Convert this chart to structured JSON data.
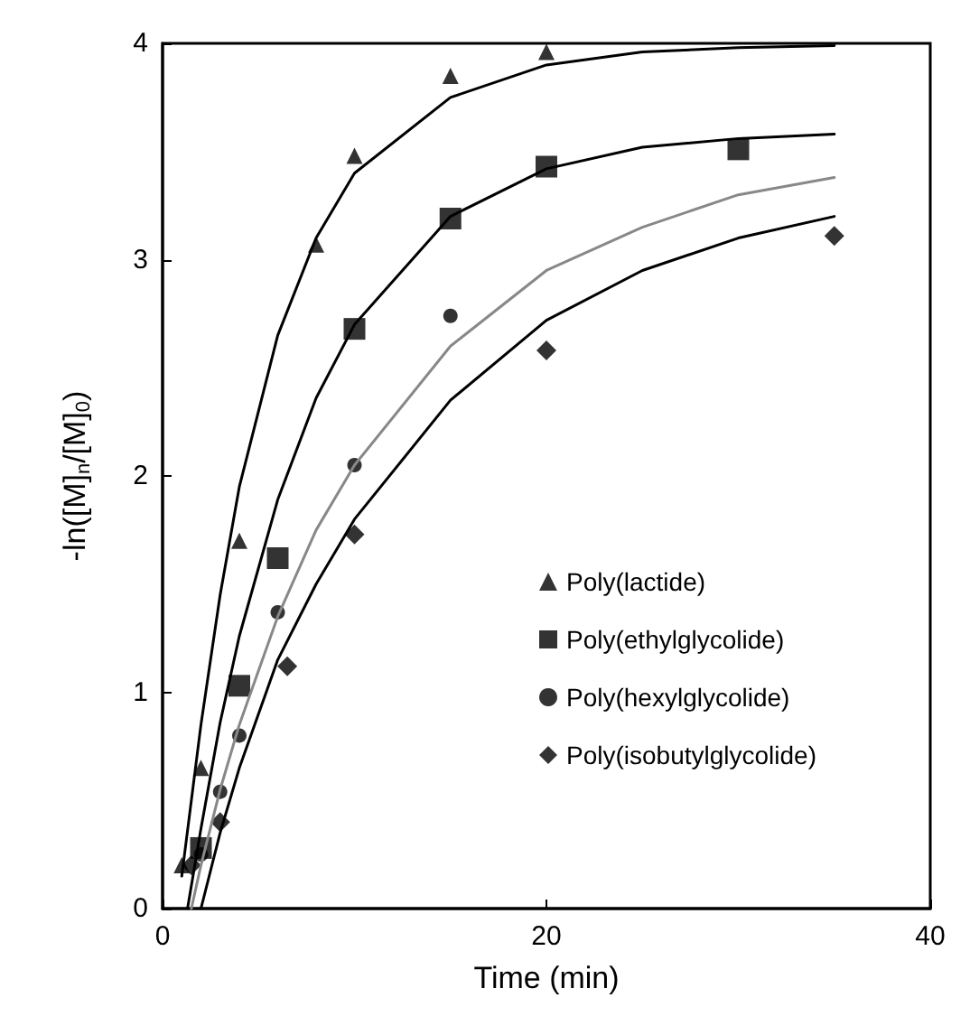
{
  "chart_data": {
    "type": "scatter",
    "xlabel": "Time (min)",
    "ylabel": "-ln([M]$_{n}$/[M]$_{0}$)",
    "xlim": [
      0,
      40
    ],
    "xticks": [
      0,
      20,
      40
    ],
    "ylim": [
      0,
      4
    ],
    "yticks": [
      0,
      1,
      2,
      3,
      4
    ],
    "grid": false,
    "legend": "bottom right",
    "series": [
      {
        "name": "Poly(lactide)",
        "marker": "triangle",
        "color": "#000000",
        "x": [
          1,
          2,
          4,
          8,
          10,
          15,
          20
        ],
        "values": [
          0.2,
          0.65,
          1.7,
          3.07,
          3.48,
          3.85,
          3.96
        ]
      },
      {
        "name": "Poly(ethylglycolide)",
        "marker": "square",
        "color": "#000000",
        "x": [
          2,
          4,
          6,
          10,
          15,
          20,
          30
        ],
        "values": [
          0.28,
          1.03,
          1.62,
          2.68,
          3.19,
          3.43,
          3.51
        ]
      },
      {
        "name": "Poly(hexylglycolide)",
        "marker": "circle",
        "color": "#000000",
        "x": [
          2,
          3,
          4,
          6,
          10,
          15
        ],
        "values": [
          0.25,
          0.54,
          0.8,
          1.37,
          2.05,
          2.74
        ]
      },
      {
        "name": "Poly(isobutylglycolide)",
        "marker": "diamond",
        "color": "#000000",
        "x": [
          1.5,
          3,
          6.5,
          10,
          20,
          35
        ],
        "values": [
          0.2,
          0.4,
          1.12,
          1.73,
          2.58,
          3.11
        ]
      },
      {
        "type": "line",
        "marker": "none",
        "line_style": "solid",
        "color": "#000000",
        "x": [
          1,
          2,
          3,
          4,
          6,
          8,
          10,
          15,
          20,
          25,
          30,
          35
        ],
        "values": [
          0.15,
          0.85,
          1.45,
          1.95,
          2.65,
          3.1,
          3.4,
          3.75,
          3.9,
          3.96,
          3.98,
          3.99
        ]
      },
      {
        "type": "line",
        "marker": "none",
        "line_style": "solid",
        "color": "#000000",
        "x": [
          1.3,
          2,
          3,
          4,
          6,
          8,
          10,
          15,
          20,
          25,
          30,
          35
        ],
        "values": [
          0,
          0.37,
          0.86,
          1.26,
          1.89,
          2.36,
          2.7,
          3.2,
          3.42,
          3.52,
          3.56,
          3.58
        ]
      },
      {
        "type": "line",
        "marker": "none",
        "line_style": "solid",
        "color": "#888888",
        "x": [
          1.5,
          2,
          3,
          4,
          6,
          8,
          10,
          15,
          20,
          25,
          30,
          35
        ],
        "values": [
          0,
          0.2,
          0.55,
          0.85,
          1.35,
          1.75,
          2.05,
          2.6,
          2.95,
          3.15,
          3.3,
          3.38
        ]
      },
      {
        "type": "line",
        "marker": "none",
        "line_style": "solid",
        "color": "#000000",
        "x": [
          2,
          3,
          4,
          6,
          8,
          10,
          15,
          20,
          25,
          30,
          35
        ],
        "values": [
          0,
          0.35,
          0.65,
          1.15,
          1.5,
          1.8,
          2.35,
          2.72,
          2.95,
          3.1,
          3.2
        ]
      }
    ]
  }
}
